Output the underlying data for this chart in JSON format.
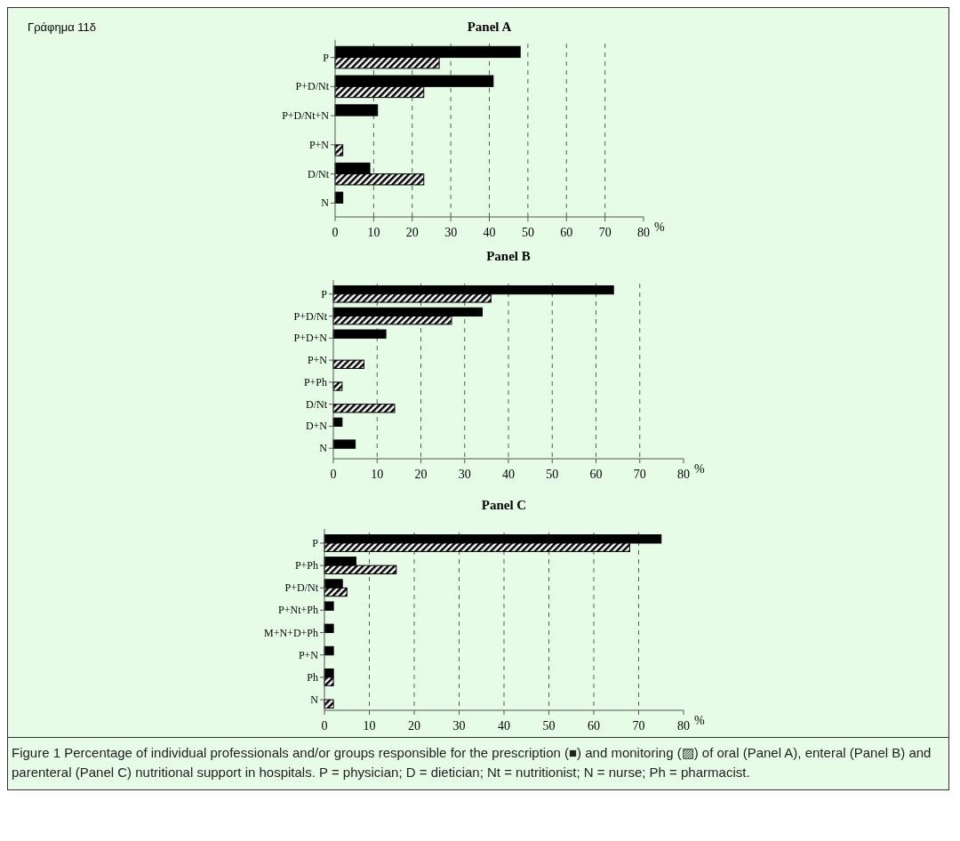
{
  "chart_data": [
    {
      "type": "bar",
      "orientation": "horizontal",
      "title": "Panel A",
      "annotations": [
        "Γράφημα 11δ"
      ],
      "categories": [
        "P",
        "P+D/Nt",
        "P+D/Nt+N",
        "P+N",
        "D/Nt",
        "N"
      ],
      "series": [
        {
          "color": "#000000",
          "values": [
            48,
            41,
            11,
            null,
            9,
            2
          ]
        },
        {
          "color": "#000000",
          "values": [
            27,
            23,
            null,
            2,
            23,
            null
          ]
        }
      ],
      "xlim": [
        0,
        80
      ],
      "xticks": [
        0,
        10,
        20,
        30,
        40,
        50,
        60,
        70,
        80
      ],
      "xlabel": "%",
      "grid": "x"
    },
    {
      "type": "bar",
      "orientation": "horizontal",
      "title": "Panel B",
      "categories": [
        "P",
        "P+D/Nt",
        "P+D+N",
        "P+N",
        "P+Ph",
        "D/Nt",
        "D+N",
        "N"
      ],
      "series": [
        {
          "color": "#000000",
          "values": [
            64,
            34,
            12,
            null,
            null,
            null,
            2,
            5
          ]
        },
        {
          "color": "#000000",
          "values": [
            36,
            27,
            null,
            7,
            2,
            14,
            null,
            null
          ]
        }
      ],
      "xlim": [
        0,
        80
      ],
      "xticks": [
        0,
        10,
        20,
        30,
        40,
        50,
        60,
        70,
        80
      ],
      "xlabel": "%",
      "grid": "x"
    },
    {
      "type": "bar",
      "orientation": "horizontal",
      "title": "Panel C",
      "annotations": [
        "Figure 1  Percentage of individual professionals and/or groups responsible for the prescription (■) and monitoring (▨) of oral (Panel A), enteral (Panel B) and parenteral (Panel C) nutritional support in hospitals. P = physician; D = dietician; Nt = nutritionist; N = nurse; Ph = pharmacist."
      ],
      "categories": [
        "P",
        "P+Ph",
        "P+D/Nt",
        "P+Nt+Ph",
        "M+N+D+Ph",
        "P+N",
        "Ph",
        "N"
      ],
      "series": [
        {
          "color": "#000000",
          "values": [
            75,
            7,
            4,
            2,
            2,
            2,
            2,
            null
          ]
        },
        {
          "color": "#000000",
          "values": [
            68,
            16,
            5,
            null,
            null,
            null,
            2,
            2
          ]
        }
      ],
      "xlim": [
        0,
        80
      ],
      "xticks": [
        0,
        10,
        20,
        30,
        40,
        50,
        60,
        70,
        80
      ],
      "xlabel": "%",
      "grid": "x"
    }
  ]
}
